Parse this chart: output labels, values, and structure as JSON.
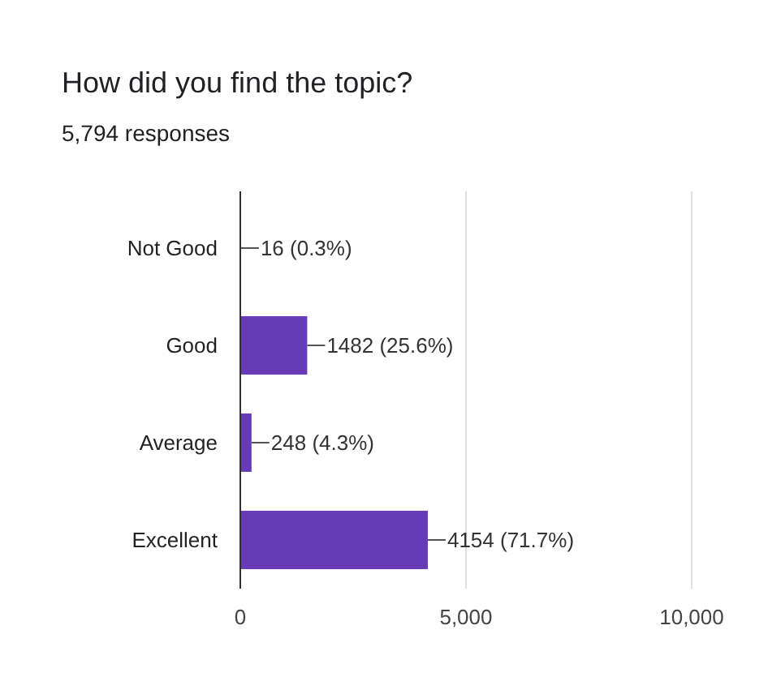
{
  "chart_data": {
    "type": "bar",
    "orientation": "horizontal",
    "title": "How did you find the topic?",
    "subtitle": "5,794 responses",
    "categories": [
      "Not Good",
      "Good",
      "Average",
      "Excellent"
    ],
    "values": [
      16,
      1482,
      248,
      4154
    ],
    "value_labels": [
      "16 (0.3%)",
      "1482 (25.6%)",
      "248 (4.3%)",
      "4154 (71.7%)"
    ],
    "color": "#673ab7",
    "xlim": [
      0,
      10000
    ],
    "xticks": [
      0,
      {
        "value": 5000,
        "label": "5,000"
      },
      {
        "value": 10000,
        "label": "10,000"
      }
    ],
    "grid": "x"
  }
}
